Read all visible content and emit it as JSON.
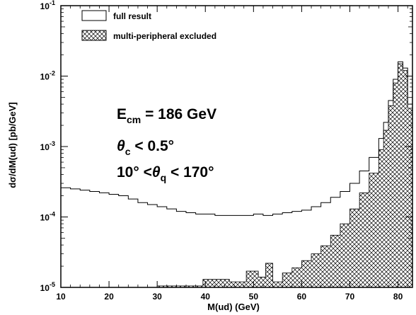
{
  "chart_data": {
    "type": "area",
    "title": "",
    "xlabel": "M(ud) (GeV)",
    "ylabel": "dσ/dM(ud) [pb/GeV]",
    "xlim": [
      10,
      83
    ],
    "ylim": [
      1e-05,
      0.1
    ],
    "yscale": "log",
    "grid": false,
    "legend_position": "top-left",
    "x_ticks": [
      10,
      20,
      30,
      40,
      50,
      60,
      70,
      80
    ],
    "x_tick_labels": [
      "10",
      "20",
      "30",
      "40",
      "50",
      "60",
      "70",
      "80"
    ],
    "y_ticks": [
      1e-05,
      0.0001,
      0.001,
      0.01,
      0.1
    ],
    "y_tick_labels": [
      {
        "base": "10",
        "exp": "-5"
      },
      {
        "base": "10",
        "exp": "-4"
      },
      {
        "base": "10",
        "exp": "-3"
      },
      {
        "base": "10",
        "exp": "-2"
      },
      {
        "base": "10",
        "exp": "-1"
      }
    ],
    "legend": [
      {
        "label": "full result",
        "style": "open"
      },
      {
        "label": "multi-peripheral excluded",
        "style": "crosshatch"
      }
    ],
    "annotations": [
      {
        "main": "E",
        "sub": "cm",
        "rest": " = 186 GeV"
      },
      {
        "main": "θ",
        "sub": "c",
        "rest": " < 0.5°"
      },
      {
        "pre": "10° <",
        "main": "θ",
        "sub": "q",
        "rest": " < 170°"
      }
    ],
    "series": [
      {
        "name": "full result",
        "x": [
          10,
          12,
          14,
          16,
          18,
          20,
          22,
          24,
          26,
          28,
          30,
          32,
          34,
          36,
          38,
          40,
          42,
          44,
          46,
          48,
          50,
          52,
          54,
          56,
          58,
          60,
          62,
          64,
          66,
          68,
          70,
          72,
          74,
          76,
          77,
          78,
          79,
          80,
          81,
          82,
          83
        ],
        "values": [
          0.00026,
          0.00025,
          0.00024,
          0.00023,
          0.00022,
          0.00021,
          0.0002,
          0.00018,
          0.00016,
          0.00015,
          0.00014,
          0.00013,
          0.00012,
          0.000115,
          0.00011,
          0.00011,
          0.000105,
          0.000105,
          0.000105,
          0.000105,
          0.00011,
          0.000105,
          0.00011,
          0.000115,
          0.00012,
          0.000125,
          0.00014,
          0.00016,
          0.00019,
          0.00023,
          0.0003,
          0.00045,
          0.0007,
          0.0013,
          0.0022,
          0.0045,
          0.009,
          0.016,
          0.013,
          0.004,
          0.001
        ]
      },
      {
        "name": "multi-peripheral excluded",
        "x": [
          30,
          39.5,
          45,
          48.5,
          51,
          52.5,
          54,
          56,
          58,
          60,
          62,
          64,
          66,
          68,
          70,
          72,
          74,
          76,
          77,
          78,
          79,
          80,
          81,
          82,
          83
        ],
        "values": [
          1.05e-05,
          1.3e-05,
          1.2e-05,
          1.7e-05,
          1.4e-05,
          2.2e-05,
          1.2e-05,
          1.6e-05,
          1.9e-05,
          2.4e-05,
          3e-05,
          3.9e-05,
          5.5e-05,
          8e-05,
          0.00013,
          0.00022,
          0.00042,
          0.0009,
          0.0017,
          0.0038,
          0.008,
          0.015,
          0.012,
          0.0035,
          0.0009
        ]
      }
    ]
  }
}
